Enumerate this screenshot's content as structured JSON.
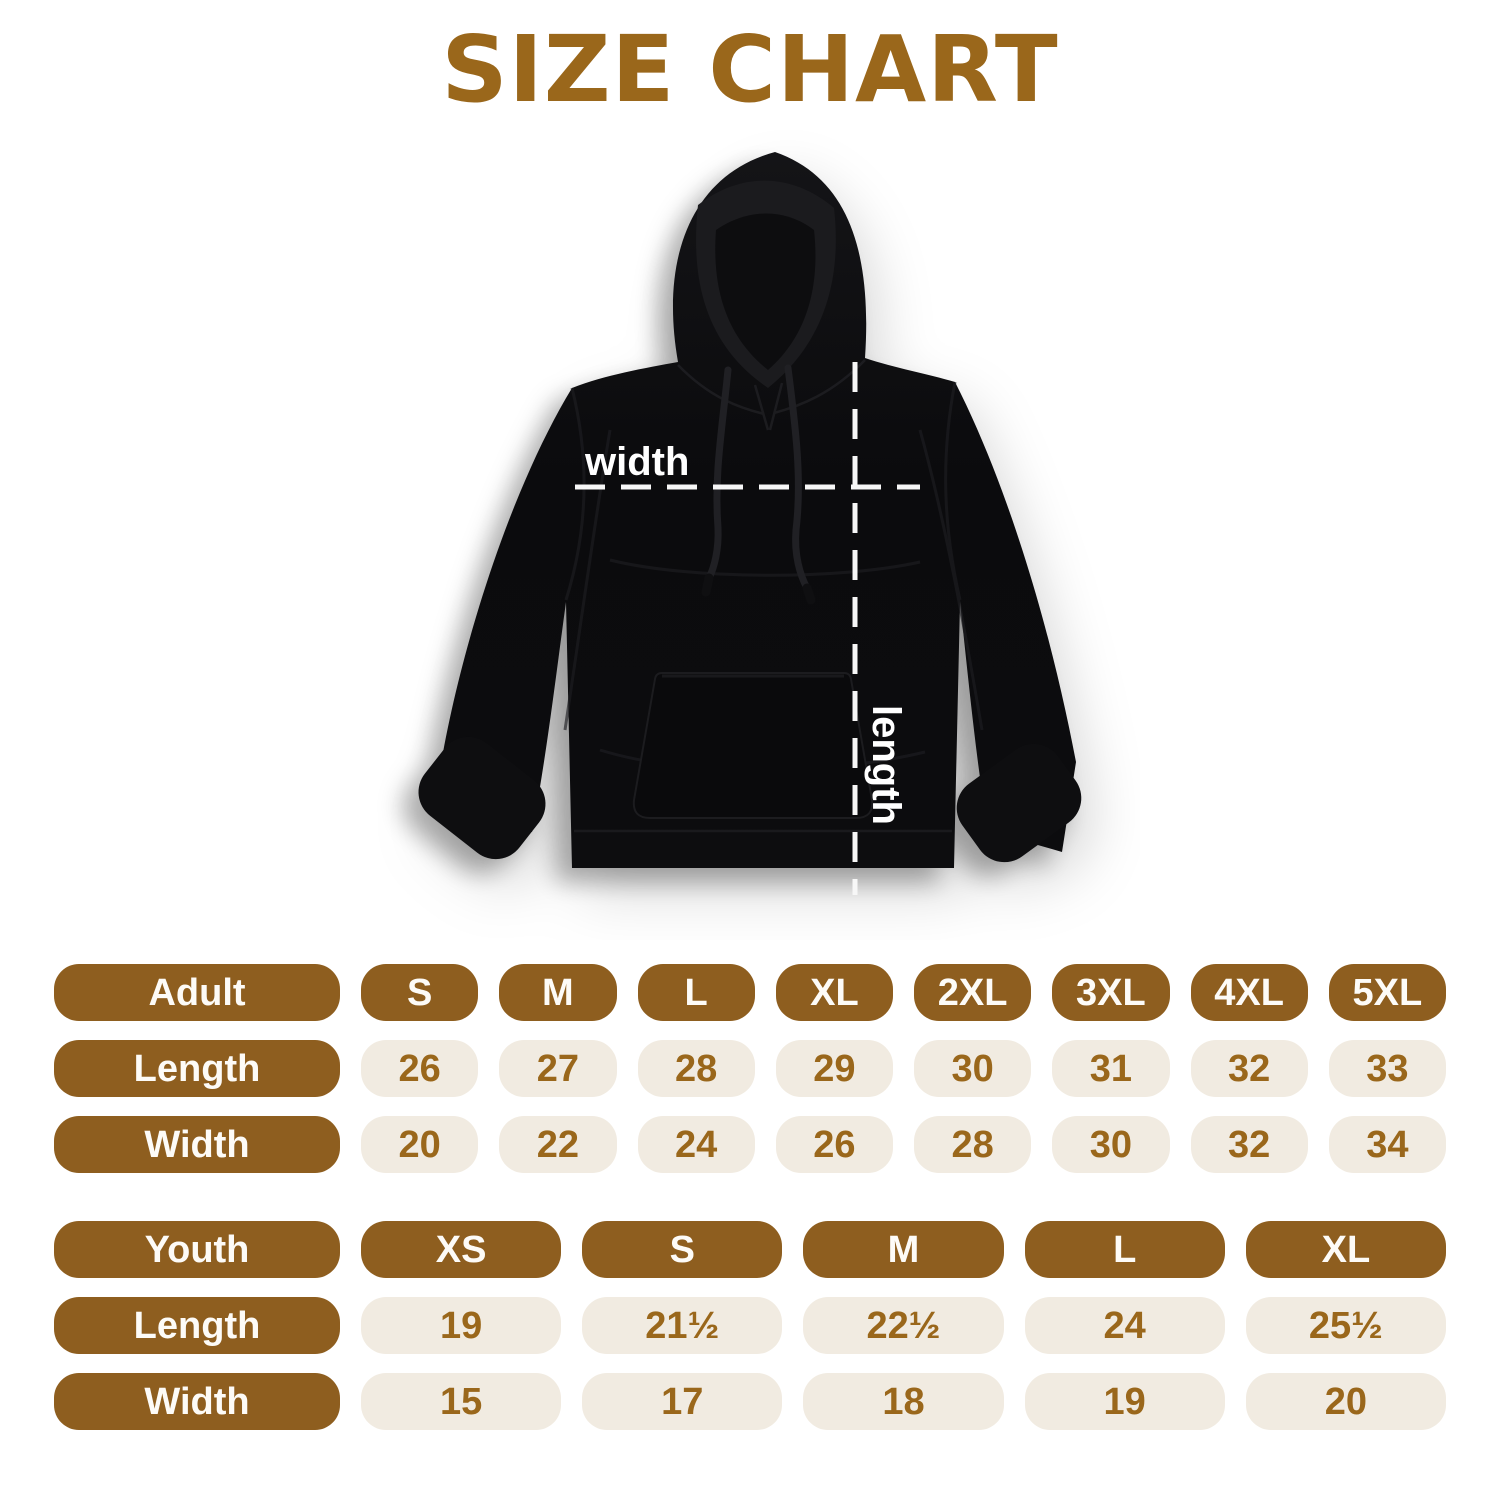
{
  "title": "SIZE CHART",
  "colors": {
    "brown_pill": "#8e5e1f",
    "title_brown": "#9a671b",
    "value_text_brown": "#9a671b",
    "cell_beige": "#f1ebe1",
    "page_background": "#ffffff",
    "hoodie_black": "#0b0b0d",
    "measure_line_white": "#f7f7f7"
  },
  "diagram": {
    "garment": "black pullover hoodie (flat lay)",
    "width_label": "width",
    "length_label": "length"
  },
  "chart_data": [
    {
      "type": "table",
      "title": "Adult hoodie sizes (inches)",
      "columns": [
        "Adult",
        "S",
        "M",
        "L",
        "XL",
        "2XL",
        "3XL",
        "4XL",
        "5XL"
      ],
      "rows": [
        {
          "label": "Length",
          "values": [
            "26",
            "27",
            "28",
            "29",
            "30",
            "31",
            "32",
            "33"
          ]
        },
        {
          "label": "Width",
          "values": [
            "20",
            "22",
            "24",
            "26",
            "28",
            "30",
            "32",
            "34"
          ]
        }
      ]
    },
    {
      "type": "table",
      "title": "Youth hoodie sizes (inches)",
      "columns": [
        "Youth",
        "XS",
        "S",
        "M",
        "L",
        "XL"
      ],
      "rows": [
        {
          "label": "Length",
          "values": [
            "19",
            "21½",
            "22½",
            "24",
            "25½"
          ]
        },
        {
          "label": "Width",
          "values": [
            "15",
            "17",
            "18",
            "19",
            "20"
          ]
        }
      ]
    }
  ]
}
